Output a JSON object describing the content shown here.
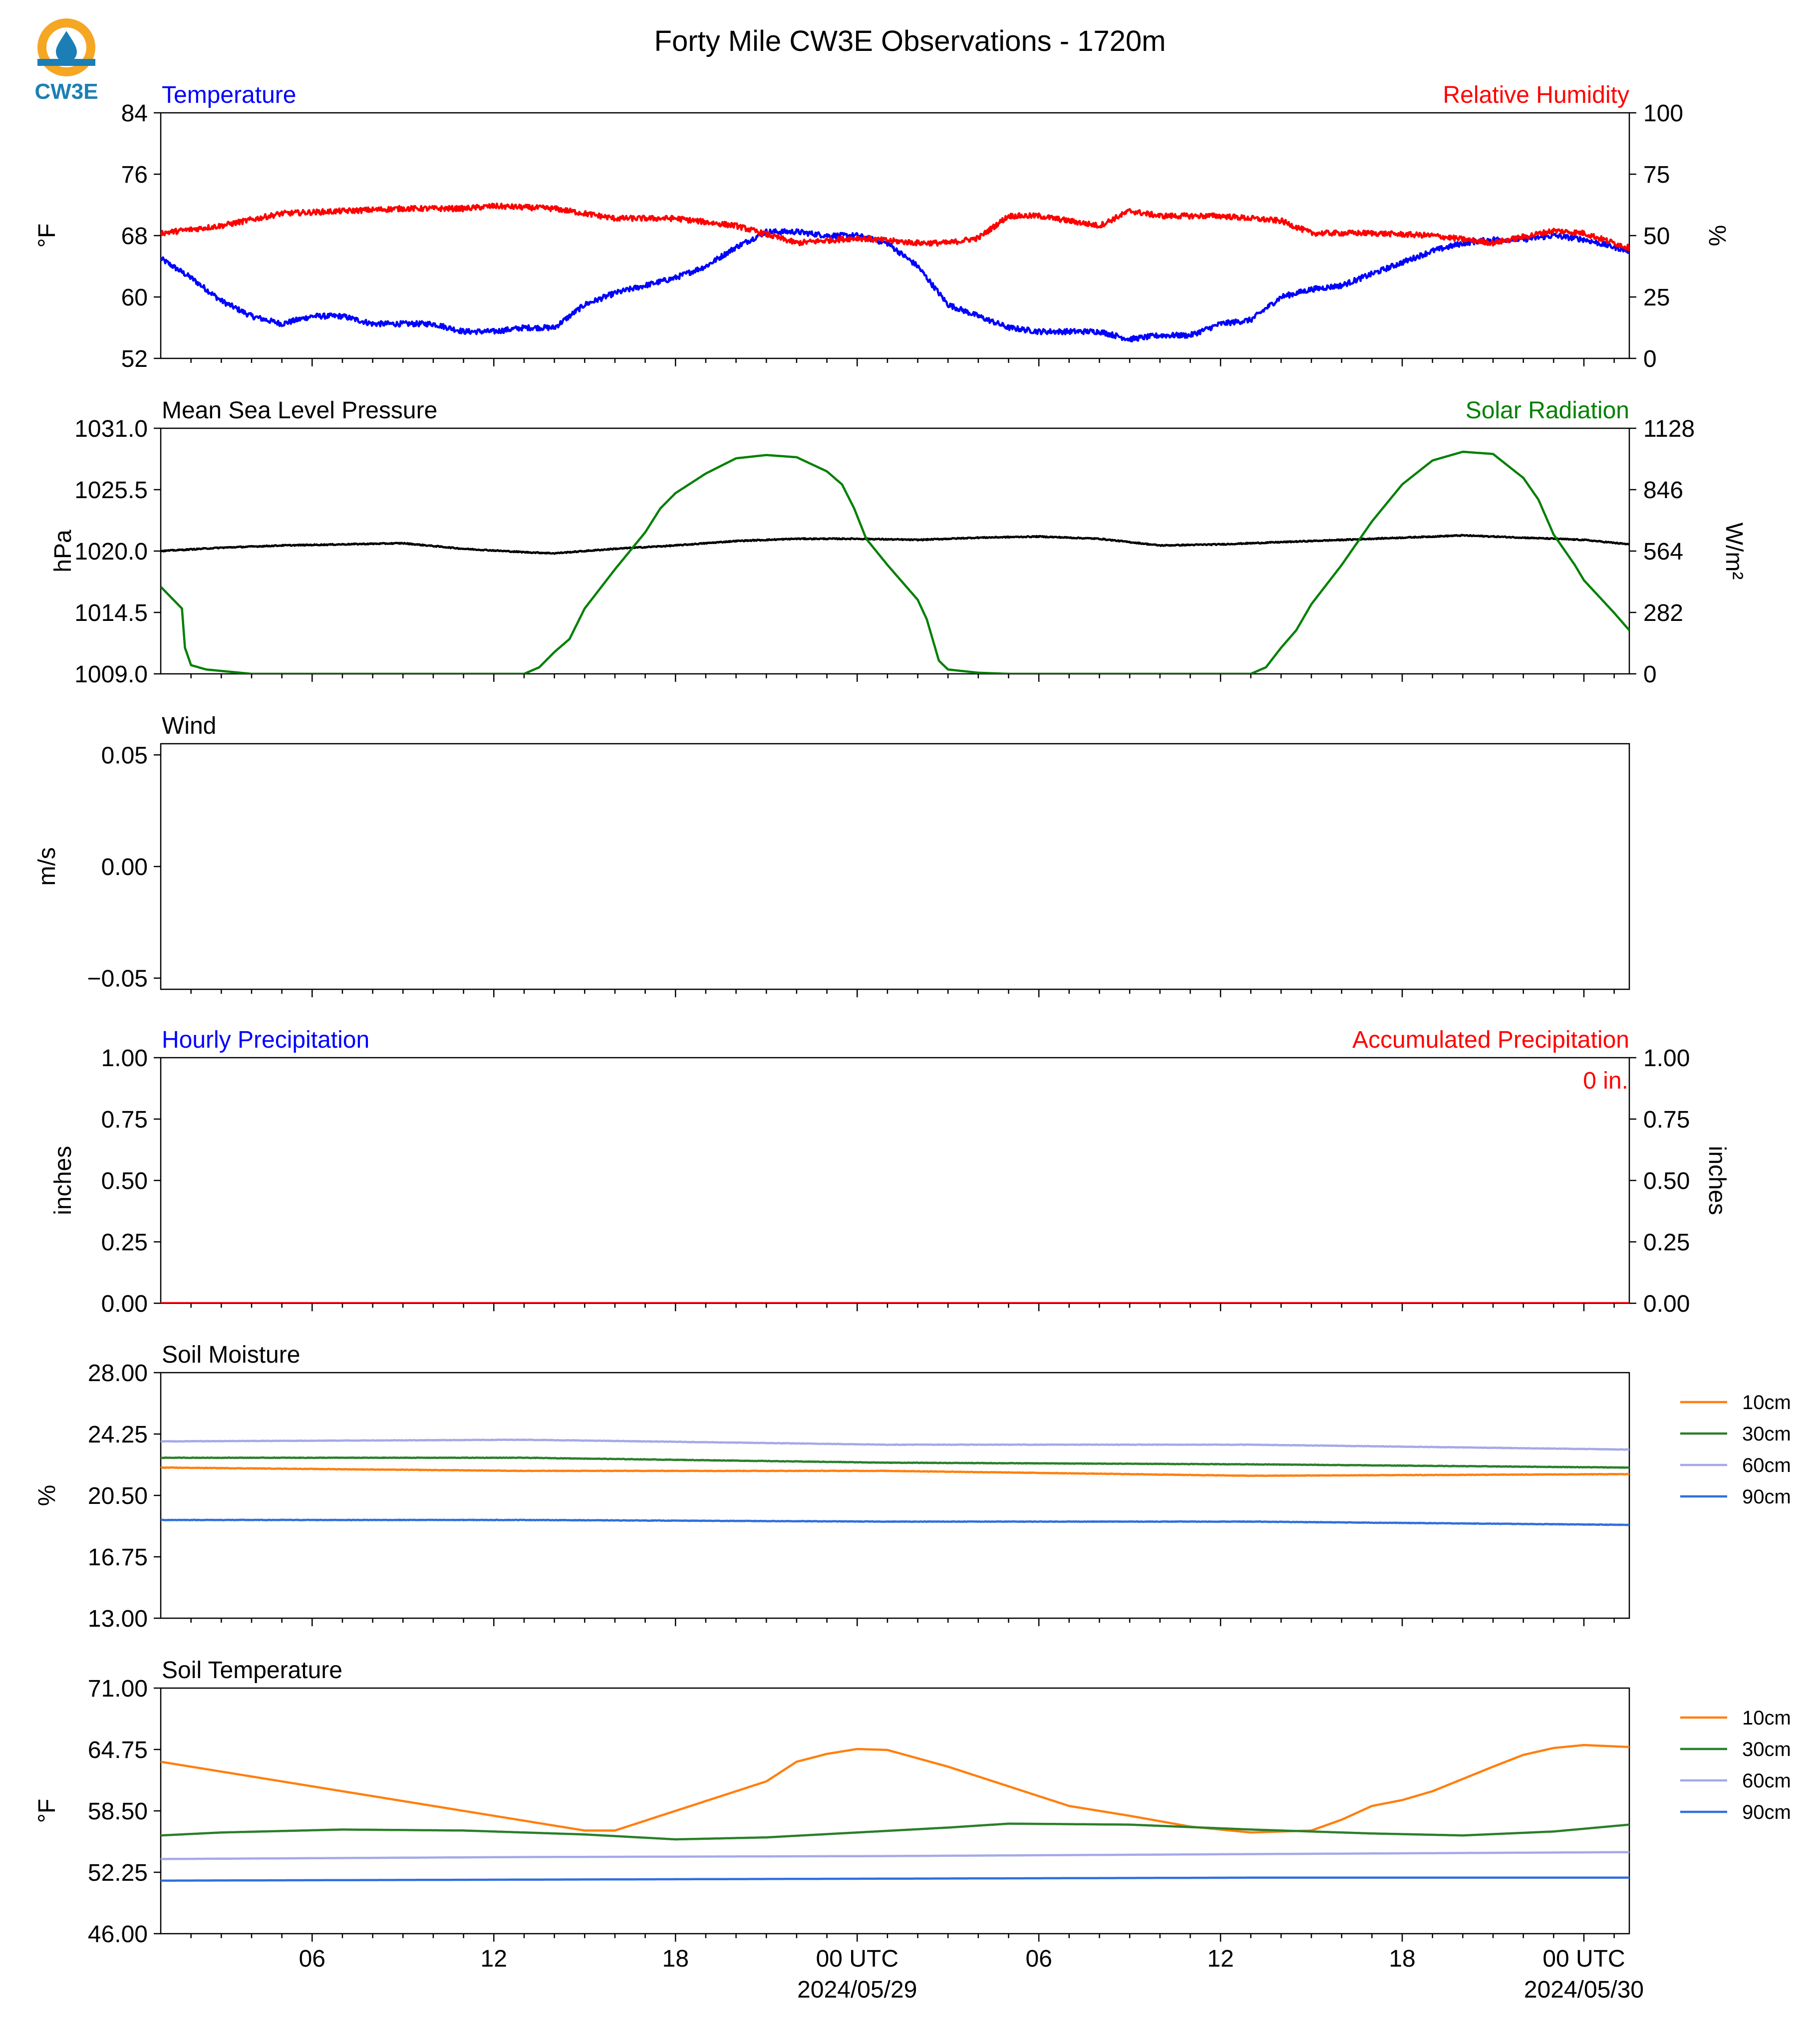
{
  "title": "Forty Mile CW3E Observations - 1720m",
  "logo": {
    "text": "CW3E",
    "colors": [
      "#f5a623",
      "#1b7fb5"
    ]
  },
  "x_axis": {
    "range_hours": [
      0,
      48.5
    ],
    "tick_hours": [
      5,
      11,
      17,
      23,
      29,
      35,
      41,
      47
    ],
    "tick_labels": [
      "06",
      "12",
      "18",
      "00 UTC",
      "06",
      "12",
      "18",
      "00 UTC"
    ],
    "date_labels": [
      {
        "at_hour": 23,
        "text": "2024/05/29"
      },
      {
        "at_hour": 47,
        "text": "2024/05/30"
      }
    ]
  },
  "colors": {
    "temperature": "#0000ff",
    "humidity": "#ff0000",
    "pressure": "#000000",
    "solar": "#008000",
    "c10": "#ff7f0e",
    "c30": "#2a7f2a",
    "c60": "#a5a9e8",
    "c90": "#2f6fe0"
  },
  "chart_data": [
    {
      "id": "temp_rh",
      "type": "line",
      "left_label": "Temperature",
      "right_label": "Relative Humidity",
      "ylabel": "°F",
      "y2label": "%",
      "ylim": [
        52,
        84
      ],
      "yticks": [
        52,
        60,
        68,
        76,
        84
      ],
      "ytick_labels": [
        "52",
        "60",
        "68",
        "76",
        "84"
      ],
      "y2lim": [
        0,
        100
      ],
      "y2ticks": [
        0,
        25,
        50,
        75,
        100
      ],
      "y2tick_labels": [
        "0",
        "25",
        "50",
        "75",
        "100"
      ],
      "series": [
        {
          "name": "Temperature",
          "axis": "left",
          "color_key": "temperature",
          "noise": 0.35,
          "x": [
            0,
            1,
            2,
            3,
            4,
            5,
            6,
            7,
            8,
            9,
            10,
            11,
            12,
            13,
            14,
            15,
            16,
            17,
            18,
            19,
            20,
            21,
            22,
            23,
            24,
            25,
            26,
            27,
            28,
            29,
            30,
            31,
            32,
            33,
            34,
            35,
            36,
            37,
            38,
            39,
            40,
            41,
            42,
            43,
            44,
            45,
            46,
            47,
            48.5
          ],
          "values": [
            65,
            62.5,
            59.5,
            57.5,
            56.5,
            57.5,
            57.5,
            56.5,
            56.5,
            56.5,
            55.5,
            55.5,
            56,
            56,
            59,
            60.5,
            61.5,
            62.5,
            64,
            66.5,
            68.5,
            68.5,
            68,
            68,
            67,
            64,
            59,
            57.5,
            56,
            55.5,
            55.5,
            55.5,
            54.5,
            55,
            55,
            56.5,
            57,
            60,
            61,
            61.5,
            63,
            64.5,
            66,
            67,
            67.5,
            67.5,
            68,
            67.5,
            66
          ]
        },
        {
          "name": "Relative Humidity",
          "axis": "right",
          "color_key": "humidity",
          "noise": 0.35,
          "x": [
            0,
            2,
            4,
            6,
            8,
            10,
            11,
            13,
            15,
            17,
            19,
            21,
            23,
            25,
            26,
            27,
            28,
            29,
            31,
            32,
            33,
            35,
            37,
            38,
            40,
            42,
            44,
            46,
            47,
            48.5
          ],
          "values": [
            51,
            54,
            59,
            60,
            61,
            61,
            62,
            61,
            57,
            57,
            54,
            47,
            49,
            47,
            47,
            49,
            58,
            58,
            54,
            60,
            58,
            58,
            56,
            51,
            51,
            50,
            47,
            52,
            51,
            45
          ]
        }
      ]
    },
    {
      "id": "pressure_solar",
      "type": "line",
      "left_label": "Mean Sea Level Pressure",
      "right_label": "Solar Radiation",
      "ylabel": "hPa",
      "y2label": "W/m²",
      "ylim": [
        1009,
        1031
      ],
      "yticks": [
        1009,
        1014.5,
        1020,
        1025.5,
        1031
      ],
      "ytick_labels": [
        "1009.0",
        "1014.5",
        "1020.0",
        "1025.5",
        "1031.0"
      ],
      "y2lim": [
        0,
        1128
      ],
      "y2ticks": [
        0,
        282,
        564,
        846,
        1128
      ],
      "y2tick_labels": [
        "0",
        "282",
        "564",
        "846",
        "1128"
      ],
      "series": [
        {
          "name": "Mean Sea Level Pressure",
          "axis": "left",
          "color_key": "pressure",
          "noise": 0.07,
          "x": [
            0,
            2,
            4,
            6,
            8,
            10,
            12,
            13,
            15,
            17,
            19,
            21,
            23,
            25,
            27,
            29,
            31,
            33,
            35,
            37,
            39,
            41,
            43,
            45,
            47,
            48.5
          ],
          "values": [
            1020,
            1020.3,
            1020.5,
            1020.6,
            1020.7,
            1020.2,
            1019.9,
            1019.8,
            1020.2,
            1020.5,
            1020.9,
            1021.1,
            1021.1,
            1021.0,
            1021.2,
            1021.3,
            1021.1,
            1020.5,
            1020.6,
            1020.8,
            1021.0,
            1021.2,
            1021.4,
            1021.2,
            1021.0,
            1020.6
          ]
        },
        {
          "name": "Solar Radiation",
          "axis": "right",
          "color_key": "solar",
          "noise": 0,
          "x": [
            0,
            0.7,
            0.8,
            1.0,
            1.5,
            3,
            12,
            12.5,
            13,
            13.5,
            14,
            15,
            16,
            16.5,
            17,
            18,
            19,
            20,
            21,
            22,
            22.5,
            22.9,
            23.3,
            24,
            25,
            25.3,
            25.7,
            26,
            27,
            28,
            36,
            36.5,
            37,
            37.5,
            38,
            39,
            40,
            41,
            42,
            43,
            44,
            45,
            45.5,
            46,
            46.7,
            47,
            48,
            48.5
          ],
          "values": [
            400,
            300,
            120,
            40,
            20,
            0,
            0,
            30,
            100,
            160,
            300,
            480,
            650,
            760,
            830,
            920,
            990,
            1005,
            995,
            930,
            870,
            760,
            620,
            500,
            340,
            250,
            60,
            20,
            5,
            0,
            0,
            30,
            120,
            200,
            320,
            500,
            700,
            870,
            980,
            1020,
            1010,
            900,
            800,
            640,
            500,
            430,
            280,
            200
          ]
        }
      ]
    },
    {
      "id": "wind",
      "type": "line",
      "left_label": "Wind",
      "ylabel": "m/s",
      "ylim": [
        -0.055,
        0.055
      ],
      "yticks": [
        -0.05,
        0,
        0.05
      ],
      "ytick_labels": [
        "−0.05",
        "0.00",
        "0.05"
      ],
      "series": []
    },
    {
      "id": "precip",
      "type": "line",
      "left_label": "Hourly Precipitation",
      "right_label": "Accumulated Precipitation",
      "ylabel": "inches",
      "y2label": "inches",
      "ylim": [
        0,
        1
      ],
      "yticks": [
        0,
        0.25,
        0.5,
        0.75,
        1
      ],
      "ytick_labels": [
        "0.00",
        "0.25",
        "0.50",
        "0.75",
        "1.00"
      ],
      "y2lim": [
        0,
        1
      ],
      "y2ticks": [
        0,
        0.25,
        0.5,
        0.75,
        1
      ],
      "y2tick_labels": [
        "0.00",
        "0.25",
        "0.50",
        "0.75",
        "1.00"
      ],
      "annotation": "0 in.",
      "series": [
        {
          "name": "Hourly Precipitation",
          "axis": "left",
          "color_key": "temperature",
          "noise": 0,
          "x": [
            0,
            48.5
          ],
          "values": [
            0,
            0
          ]
        },
        {
          "name": "Accumulated Precipitation",
          "axis": "right",
          "color_key": "humidity",
          "noise": 0,
          "x": [
            0,
            48.5
          ],
          "values": [
            0,
            0
          ]
        }
      ]
    },
    {
      "id": "soil_moisture",
      "type": "line",
      "left_label": "Soil Moisture",
      "ylabel": "%",
      "ylim": [
        13,
        28
      ],
      "yticks": [
        13,
        16.75,
        20.5,
        24.25,
        28
      ],
      "ytick_labels": [
        "13.00",
        "16.75",
        "20.50",
        "24.25",
        "28.00"
      ],
      "legend": [
        "10cm",
        "30cm",
        "60cm",
        "90cm"
      ],
      "series": [
        {
          "name": "10cm",
          "axis": "left",
          "color_key": "c10",
          "noise": 0.03,
          "x": [
            0,
            12,
            24,
            36,
            48.5
          ],
          "values": [
            22.2,
            22.0,
            22.0,
            21.7,
            21.8
          ]
        },
        {
          "name": "30cm",
          "axis": "left",
          "color_key": "c30",
          "noise": 0.03,
          "x": [
            0,
            12,
            24,
            36,
            48.5
          ],
          "values": [
            22.8,
            22.8,
            22.5,
            22.4,
            22.2
          ]
        },
        {
          "name": "60cm",
          "axis": "left",
          "color_key": "c60",
          "noise": 0.03,
          "x": [
            0,
            12,
            24,
            36,
            48.5
          ],
          "values": [
            23.8,
            23.9,
            23.6,
            23.6,
            23.3
          ]
        },
        {
          "name": "90cm",
          "axis": "left",
          "color_key": "c90",
          "noise": 0.03,
          "x": [
            0,
            12,
            24,
            36,
            48.5
          ],
          "values": [
            19.0,
            19.0,
            18.9,
            18.9,
            18.7
          ]
        }
      ]
    },
    {
      "id": "soil_temp",
      "type": "line",
      "left_label": "Soil Temperature",
      "ylabel": "°F",
      "ylim": [
        46,
        71
      ],
      "yticks": [
        46,
        52.25,
        58.5,
        64.75,
        71
      ],
      "ytick_labels": [
        "46.00",
        "52.25",
        "58.50",
        "64.75",
        "71.00"
      ],
      "legend": [
        "10cm",
        "30cm",
        "60cm",
        "90cm"
      ],
      "series": [
        {
          "name": "10cm",
          "axis": "left",
          "color_key": "c10",
          "noise": 0,
          "x": [
            0,
            4,
            8,
            12,
            14,
            15,
            16,
            18,
            20,
            21,
            22,
            23,
            24,
            26,
            28,
            30,
            32,
            34,
            36,
            38,
            39,
            40,
            41,
            42,
            44,
            45,
            46,
            47,
            48.5
          ],
          "values": [
            63.5,
            61.5,
            59.5,
            57.5,
            56.5,
            56.5,
            57.5,
            59.5,
            61.5,
            63.5,
            64.3,
            64.8,
            64.7,
            63.0,
            61.0,
            59.0,
            58.0,
            56.9,
            56.3,
            56.5,
            57.6,
            59.0,
            59.6,
            60.5,
            63.0,
            64.2,
            64.9,
            65.2,
            65.0
          ]
        },
        {
          "name": "30cm",
          "axis": "left",
          "color_key": "c30",
          "noise": 0,
          "x": [
            0,
            2,
            6,
            10,
            14,
            17,
            20,
            23,
            26,
            28,
            32,
            36,
            40,
            43,
            46,
            48.5
          ],
          "values": [
            56.0,
            56.3,
            56.6,
            56.5,
            56.1,
            55.6,
            55.8,
            56.3,
            56.8,
            57.2,
            57.1,
            56.6,
            56.2,
            56.0,
            56.4,
            57.1
          ]
        },
        {
          "name": "60cm",
          "axis": "left",
          "color_key": "c60",
          "noise": 0,
          "x": [
            0,
            12,
            24,
            36,
            48.5
          ],
          "values": [
            53.6,
            53.8,
            53.9,
            54.1,
            54.3
          ]
        },
        {
          "name": "90cm",
          "axis": "left",
          "color_key": "c90",
          "noise": 0,
          "x": [
            0,
            12,
            24,
            36,
            48.5
          ],
          "values": [
            51.4,
            51.5,
            51.6,
            51.7,
            51.7
          ]
        }
      ]
    }
  ]
}
